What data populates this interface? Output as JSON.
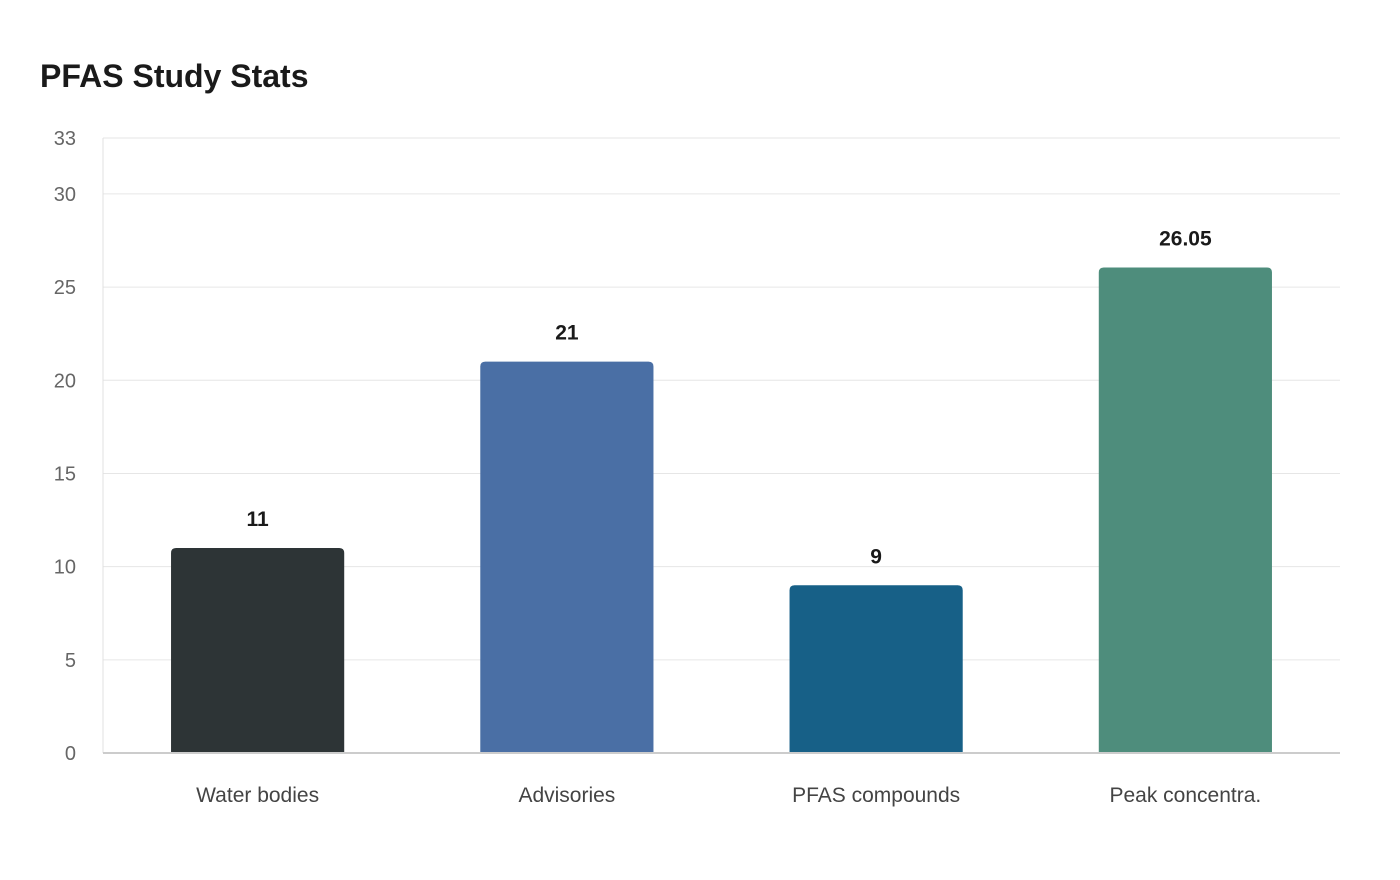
{
  "chart_data": {
    "type": "bar",
    "title": "PFAS Study Stats",
    "xlabel": "",
    "ylabel": "",
    "categories": [
      "Water bodies",
      "Advisories",
      "PFAS compounds",
      "Peak concentra."
    ],
    "values": [
      11,
      21,
      9,
      26.05
    ],
    "value_labels": [
      "11",
      "21",
      "9",
      "26.05"
    ],
    "colors": [
      "#2d3436",
      "#4a6fa5",
      "#176087",
      "#4e8d7c"
    ],
    "ylim": [
      0,
      33
    ],
    "yticks": [
      0,
      5,
      10,
      15,
      20,
      25,
      30,
      33
    ],
    "grid": true,
    "legend": "none"
  }
}
